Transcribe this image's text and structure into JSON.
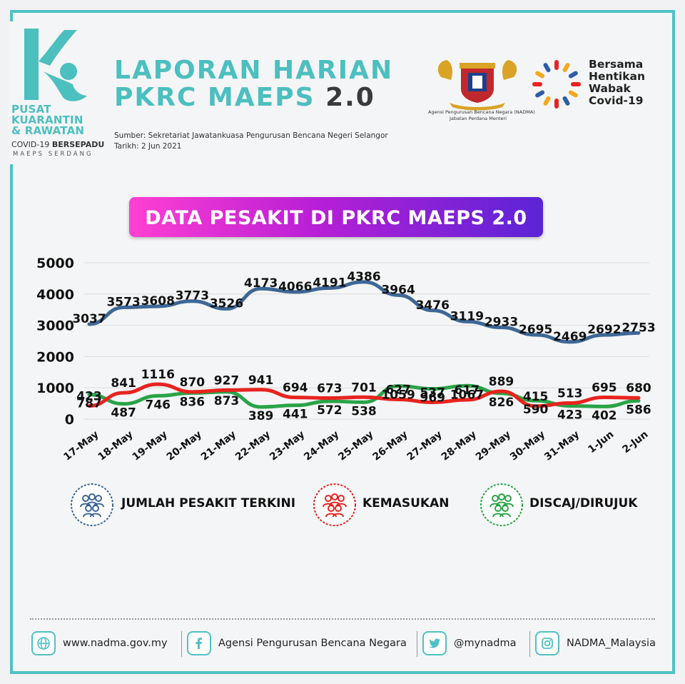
{
  "header": {
    "logo": {
      "line1": "PUSAT",
      "line2": "KUARANTIN",
      "line3": "& RAWATAN",
      "line4a": "COVID-19 ",
      "line4b": "BERSEPADU",
      "line5": "MAEPS SERDANG"
    },
    "title_line1": "LAPORAN HARIAN",
    "title_line2": "PKRC MAEPS ",
    "title_version": "2.0",
    "source": "Sumber: Sekretariat Jawatankuasa Pengurusan Bencana Negeri Selangor",
    "date": "Tarikh: 2 Jun 2021",
    "nadma_caption1": "Agensi Pengurusan Bencana Negara (NADMA)",
    "nadma_caption2": "Jabatan Perdana Menteri",
    "bersama": [
      "Bersama",
      "Hentikan",
      "Wabak",
      "Covid-19"
    ]
  },
  "banner": "DATA PESAKIT DI PKRC MAEPS 2.0",
  "chart_data": {
    "type": "line",
    "categories": [
      "17-May",
      "18-May",
      "19-May",
      "20-May",
      "21-May",
      "22-May",
      "23-May",
      "24-May",
      "25-May",
      "26-May",
      "27-May",
      "28-May",
      "29-May",
      "30-May",
      "31-May",
      "1-Jun",
      "2-Jun"
    ],
    "ylim": [
      0,
      5000
    ],
    "yticks": [
      0,
      1000,
      2000,
      3000,
      4000,
      5000
    ],
    "grid": true,
    "legend_position": "bottom",
    "series": [
      {
        "name": "JUMLAH PESAKIT TERKINI",
        "color": "#3e6796",
        "values": [
          3037,
          3573,
          3608,
          3773,
          3526,
          4173,
          4066,
          4191,
          4386,
          3964,
          3476,
          3119,
          2933,
          2695,
          2469,
          2692,
          2753
        ]
      },
      {
        "name": "KEMASUKAN",
        "color": "#e8231f",
        "values": [
          423,
          841,
          1116,
          870,
          927,
          941,
          694,
          673,
          701,
          627,
          537,
          617,
          889,
          415,
          513,
          695,
          680
        ]
      },
      {
        "name": "DISCAJ/DIRUJUK",
        "color": "#2aa347",
        "values": [
          787,
          487,
          746,
          836,
          873,
          389,
          441,
          572,
          538,
          1059,
          969,
          1067,
          826,
          590,
          423,
          402,
          586
        ]
      }
    ]
  },
  "legend_icons": [
    "people-group-icon-blue",
    "people-group-icon-red",
    "people-group-icon-green"
  ],
  "footer": {
    "website": "www.nadma.gov.my",
    "facebook": "Agensi Pengurusan Bencana Negara",
    "twitter": "@mynadma",
    "instagram": "NADMA_Malaysia"
  }
}
